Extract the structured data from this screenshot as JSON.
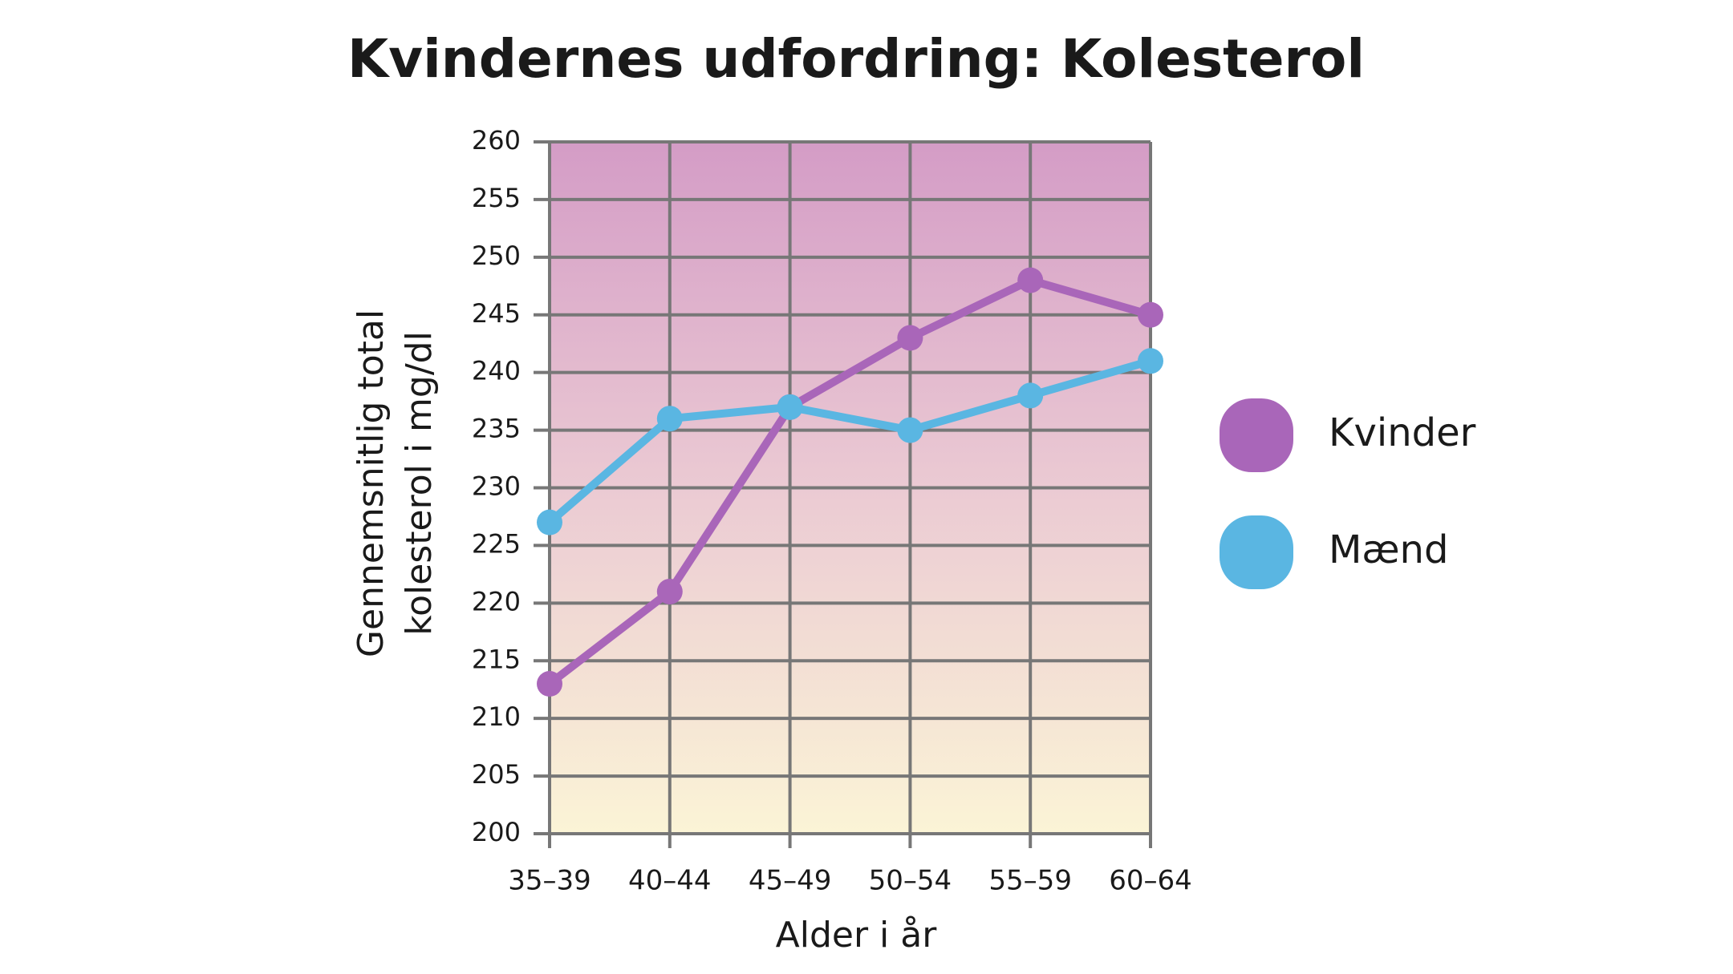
{
  "chart_data": {
    "type": "line",
    "title": "Kvindernes udfordring: Kolesterol",
    "x_label": "Alder i år",
    "y_label": [
      "Gennemsnitlig total",
      "kolesterol i mg/dl"
    ],
    "categories": [
      "35–39",
      "40–44",
      "45–49",
      "50–54",
      "55–59",
      "60–64"
    ],
    "series": [
      {
        "name": "Kvinder",
        "color": "#a966b9",
        "values": [
          213,
          221,
          237,
          243,
          248,
          245
        ]
      },
      {
        "name": "Mænd",
        "color": "#5ab6e2",
        "values": [
          227,
          236,
          237,
          235,
          238,
          241
        ]
      }
    ],
    "ylim": [
      200,
      260
    ],
    "yticks": [
      200,
      205,
      210,
      215,
      220,
      225,
      230,
      235,
      240,
      245,
      250,
      255,
      260
    ],
    "grid": true,
    "legend": "right"
  }
}
